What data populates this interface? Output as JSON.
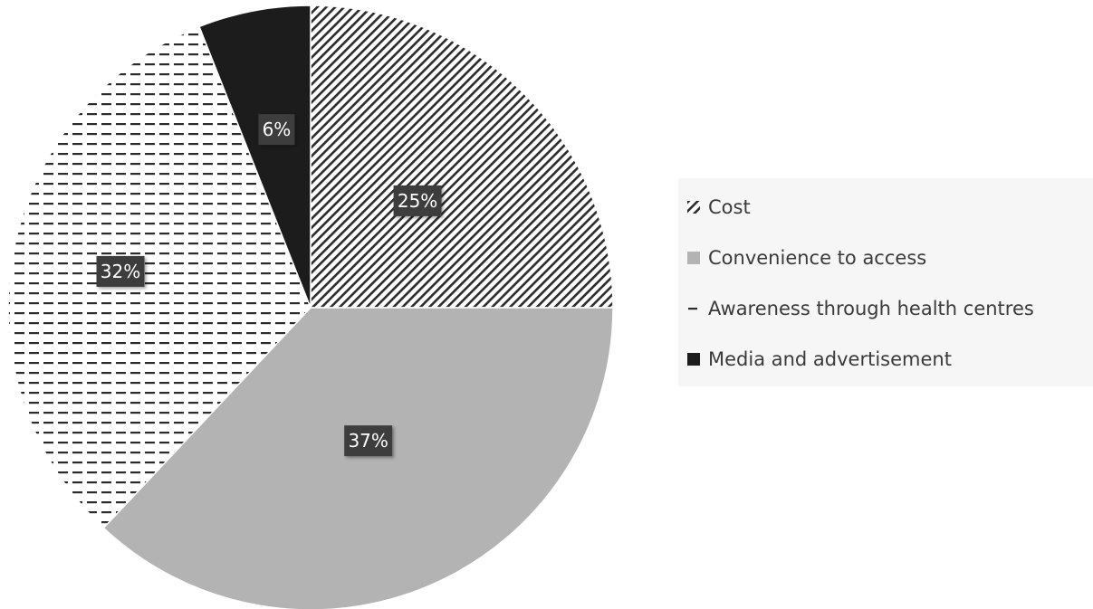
{
  "chart_data": {
    "type": "pie",
    "categories": [
      "Cost",
      "Convenience to access",
      "Awareness through health centres",
      "Media and advertisement"
    ],
    "values": [
      25,
      37,
      32,
      6
    ],
    "value_suffix": "%",
    "title": "",
    "legend_position": "right",
    "slice_order": "clockwise from 12 o'clock",
    "slice_styles": [
      {
        "pattern": "diagonal-hatch",
        "color": "#2b2b2b"
      },
      {
        "pattern": "solid",
        "color": "#b3b3b3"
      },
      {
        "pattern": "horizontal-dash",
        "color": "#2b2b2b"
      },
      {
        "pattern": "solid",
        "color": "#1c1c1c"
      }
    ],
    "label_box_color": "#3d3d3d"
  }
}
